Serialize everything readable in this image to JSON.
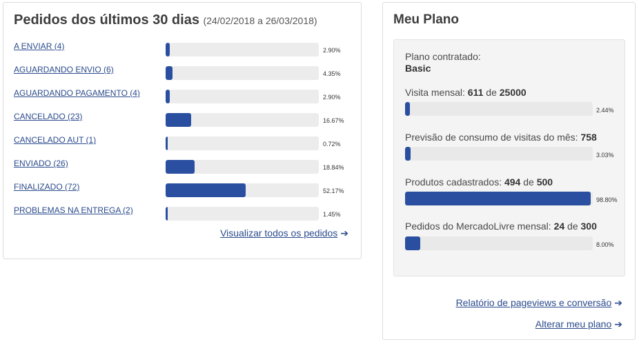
{
  "orders": {
    "title": "Pedidos dos últimos 30 dias",
    "range": "(24/02/2018 a 26/03/2018)",
    "items": [
      {
        "label": "A ENVIAR (4)",
        "percent_text": "2.90%",
        "percent": 2.9
      },
      {
        "label": "AGUARDANDO ENVIO (6)",
        "percent_text": "4.35%",
        "percent": 4.35
      },
      {
        "label": "AGUARDANDO PAGAMENTO (4)",
        "percent_text": "2.90%",
        "percent": 2.9
      },
      {
        "label": "CANCELADO (23)",
        "percent_text": "16.67%",
        "percent": 16.67
      },
      {
        "label": "CANCELADO AUT (1)",
        "percent_text": "0.72%",
        "percent": 0.72
      },
      {
        "label": "ENVIADO (26)",
        "percent_text": "18.84%",
        "percent": 18.84
      },
      {
        "label": "FINALIZADO (72)",
        "percent_text": "52.17%",
        "percent": 52.17
      },
      {
        "label": "PROBLEMAS NA ENTREGA (2)",
        "percent_text": "1.45%",
        "percent": 1.45
      }
    ],
    "view_all_label": "Visualizar todos os pedidos",
    "arrow": "➔"
  },
  "plan": {
    "title": "Meu Plano",
    "contracted_label": "Plano contratado:",
    "contracted_value": "Basic",
    "visits": {
      "label": "Visita mensal:",
      "used": "611",
      "of": "de",
      "total": "25000",
      "percent_text": "2.44%",
      "percent": 2.44
    },
    "forecast": {
      "label": "Previsão de consumo de visitas do mês:",
      "value": "758",
      "percent_text": "3.03%",
      "percent": 3.03
    },
    "products": {
      "label": "Produtos cadastrados:",
      "used": "494",
      "of": "de",
      "total": "500",
      "percent_text": "98.80%",
      "percent": 98.8
    },
    "mercadolivre": {
      "label": "Pedidos do MercadoLivre mensal:",
      "used": "24",
      "of": "de",
      "total": "300",
      "percent_text": "8.00%",
      "percent": 8.0
    },
    "report_link": "Relatório de pageviews e conversão",
    "change_plan_link": "Alterar meu plano",
    "arrow": "➔"
  },
  "colors": {
    "bar_fill": "#2a4fa0",
    "bar_track": "#ececec",
    "link": "#2a4a8c"
  }
}
